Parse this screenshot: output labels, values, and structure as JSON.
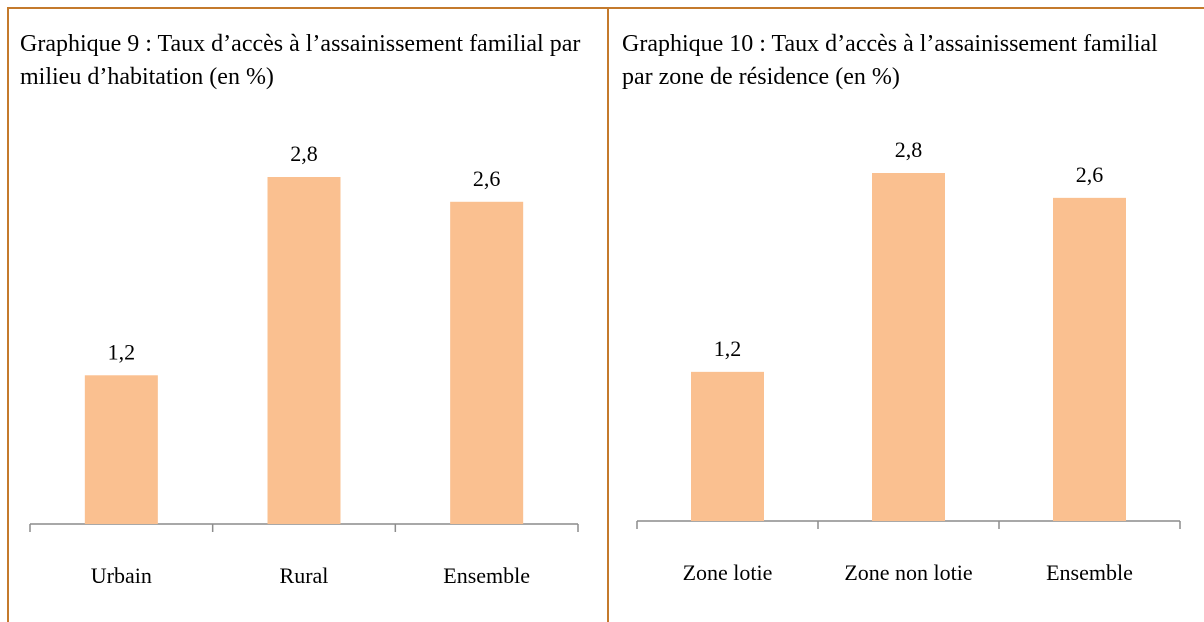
{
  "chart_data": [
    {
      "type": "bar",
      "title": "Graphique 9 : Taux d’accès à l’assainissement familial par milieu d’habitation (en %)",
      "categories": [
        "Urbain",
        "Rural",
        "Ensemble"
      ],
      "values": [
        1.2,
        2.8,
        2.6
      ],
      "value_labels": [
        "1,2",
        "2,8",
        "2,6"
      ],
      "color": "#fac090"
    },
    {
      "type": "bar",
      "title": "Graphique 10 : Taux d’accès à l’assainissement familial par zone de résidence (en %)",
      "categories": [
        "Zone lotie",
        "Zone non lotie",
        "Ensemble"
      ],
      "values": [
        1.2,
        2.8,
        2.6
      ],
      "value_labels": [
        "1,2",
        "2,8",
        "2,6"
      ],
      "color": "#fac090"
    }
  ]
}
